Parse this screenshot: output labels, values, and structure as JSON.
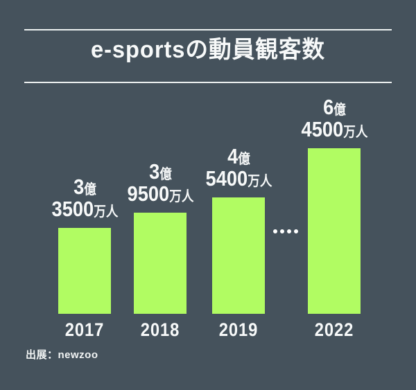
{
  "header": {
    "title": "e-sportsの動員観客数"
  },
  "footer": {
    "source": "出展：newzoo"
  },
  "colors": {
    "background": "#45525C",
    "bar": "#B1FC62",
    "text": "#FFFFFF",
    "rule": "#EDF1F1"
  },
  "ellipsis": {
    "count": 4
  },
  "chart_data": {
    "type": "bar",
    "title": "e-sportsの動員観客数",
    "categories": [
      "2017",
      "2018",
      "2019",
      "2022"
    ],
    "values": [
      3.35,
      3.95,
      4.54,
      6.45
    ],
    "unit": "億人",
    "ylim": [
      0,
      7
    ],
    "grid": false,
    "legend": "none",
    "source": "出展：newzoo",
    "bars": [
      {
        "year": "2017",
        "num1": "3",
        "unit1": "億",
        "num2": "3500",
        "unit2": "万人",
        "value_oku": 3.35
      },
      {
        "year": "2018",
        "num1": "3",
        "unit1": "億",
        "num2": "9500",
        "unit2": "万人",
        "value_oku": 3.95
      },
      {
        "year": "2019",
        "num1": "4",
        "unit1": "億",
        "num2": "5400",
        "unit2": "万人",
        "value_oku": 4.54
      },
      {
        "year": "2022",
        "num1": "6",
        "unit1": "億",
        "num2": "4500",
        "unit2": "万人",
        "value_oku": 6.45
      }
    ],
    "annotations": [
      "ellipsis dots indicating skipped years between 2019 and 2022"
    ]
  }
}
